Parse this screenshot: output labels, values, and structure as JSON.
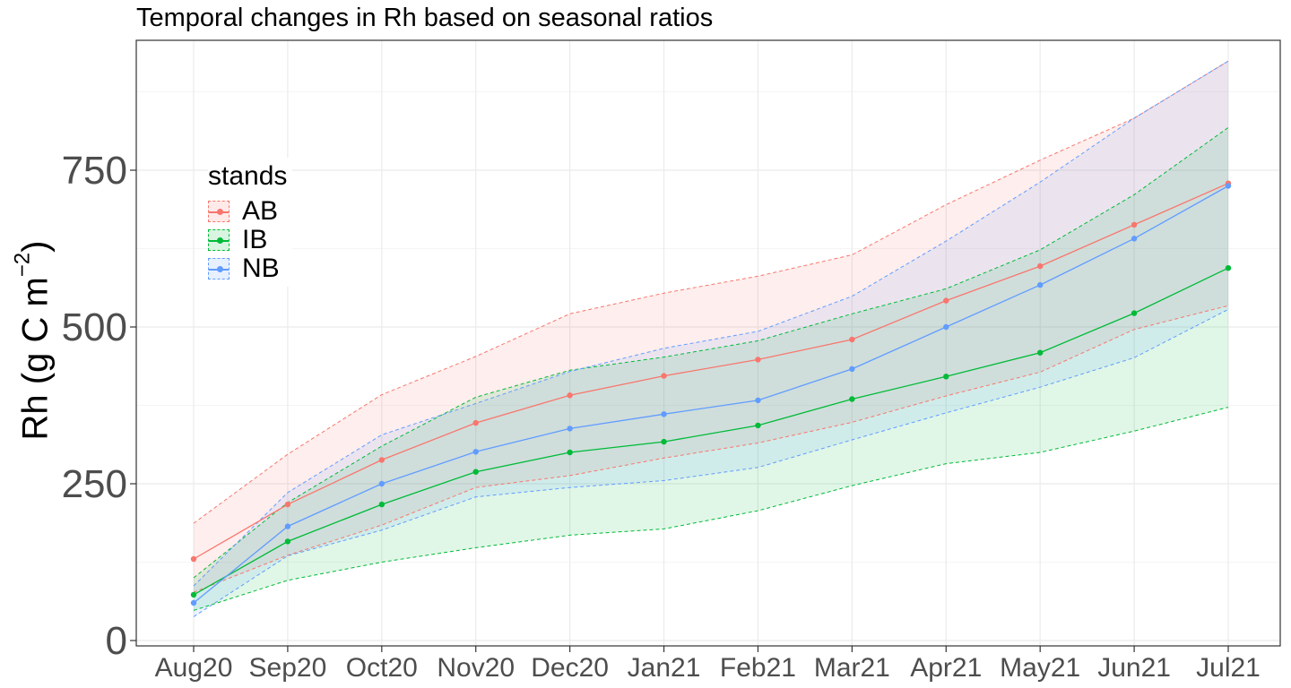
{
  "chart_data": {
    "type": "line",
    "title": "Temporal changes in Rh based on seasonal ratios",
    "xlabel": "",
    "ylabel": "Rh (g C m",
    "ylabel_superscript": "−2",
    "ylabel_suffix": ")",
    "ylim": [
      0,
      920
    ],
    "yticks": [
      0,
      250,
      500,
      750
    ],
    "categories": [
      "Aug20",
      "Sep20",
      "Oct20",
      "Nov20",
      "Dec20",
      "Jan21",
      "Feb21",
      "Mar21",
      "Apr21",
      "May21",
      "Jun21",
      "Jul21"
    ],
    "legend": {
      "title": "stands",
      "position": "top-left-inside"
    },
    "grid": true,
    "series": [
      {
        "name": "AB",
        "color": "#F8766D",
        "values": [
          130,
          217,
          288,
          347,
          391,
          422,
          448,
          480,
          542,
          597,
          663,
          729
        ],
        "upper": [
          187,
          297,
          392,
          453,
          521,
          554,
          581,
          615,
          695,
          766,
          833,
          924
        ],
        "lower": [
          77,
          136,
          184,
          244,
          263,
          291,
          315,
          348,
          390,
          428,
          496,
          534
        ]
      },
      {
        "name": "IB",
        "color": "#00BA38",
        "values": [
          73,
          158,
          217,
          269,
          300,
          317,
          343,
          385,
          421,
          459,
          522,
          594
        ],
        "upper": [
          100,
          220,
          310,
          388,
          431,
          452,
          478,
          521,
          561,
          623,
          711,
          818
        ],
        "lower": [
          48,
          96,
          125,
          148,
          168,
          178,
          207,
          247,
          282,
          300,
          334,
          372
        ]
      },
      {
        "name": "NB",
        "color": "#619CFF",
        "values": [
          60,
          182,
          250,
          301,
          338,
          361,
          383,
          433,
          500,
          567,
          641,
          725
        ],
        "upper": [
          87,
          236,
          328,
          378,
          429,
          466,
          493,
          549,
          637,
          731,
          833,
          924
        ],
        "lower": [
          38,
          135,
          176,
          229,
          244,
          255,
          276,
          320,
          363,
          404,
          451,
          528
        ]
      }
    ]
  }
}
